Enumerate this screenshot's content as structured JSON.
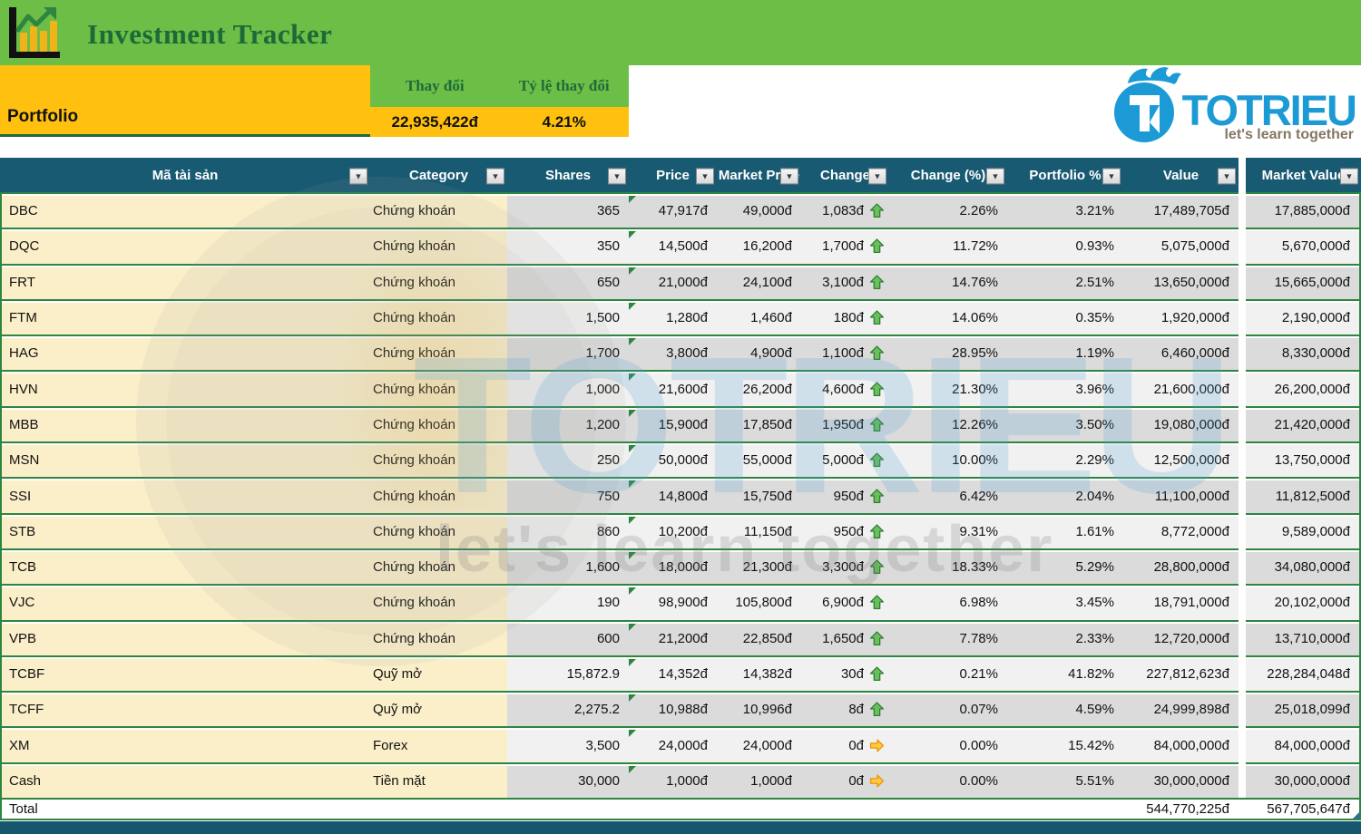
{
  "header": {
    "title": "Investment Tracker"
  },
  "summary": {
    "portfolio_label": "Portfolio",
    "change_label": "Thay đổi",
    "change_pct_label": "Tỷ lệ thay đổi",
    "change_value": "22,935,422đ",
    "change_pct_value": "4.21%"
  },
  "brand": {
    "name": "TOTRIEU",
    "tagline": "let's learn together"
  },
  "colors": {
    "banner_green": "#6CBE46",
    "accent_yellow": "#FFC010",
    "header_teal": "#195A73",
    "border_green": "#2E8540",
    "brand_blue": "#1B9AD6",
    "up_arrow_green": "#69C05B",
    "flat_arrow_orange": "#FFCB3D"
  },
  "table": {
    "columns": [
      "Mã tài sản",
      "Category",
      "Shares",
      "Price",
      "Market Price",
      "Change",
      "Change (%)",
      "Portfolio %",
      "Value",
      "Market Value"
    ],
    "rows": [
      {
        "ticker": "DBC",
        "category": "Chứng khoán",
        "shares": "365",
        "price": "47,917đ",
        "market_price": "49,000đ",
        "change": "1,083đ",
        "direction": "up",
        "change_pct": "2.26%",
        "portfolio_pct": "3.21%",
        "value": "17,489,705đ",
        "market_value": "17,885,000đ"
      },
      {
        "ticker": "DQC",
        "category": "Chứng khoán",
        "shares": "350",
        "price": "14,500đ",
        "market_price": "16,200đ",
        "change": "1,700đ",
        "direction": "up",
        "change_pct": "11.72%",
        "portfolio_pct": "0.93%",
        "value": "5,075,000đ",
        "market_value": "5,670,000đ"
      },
      {
        "ticker": "FRT",
        "category": "Chứng khoán",
        "shares": "650",
        "price": "21,000đ",
        "market_price": "24,100đ",
        "change": "3,100đ",
        "direction": "up",
        "change_pct": "14.76%",
        "portfolio_pct": "2.51%",
        "value": "13,650,000đ",
        "market_value": "15,665,000đ"
      },
      {
        "ticker": "FTM",
        "category": "Chứng khoán",
        "shares": "1,500",
        "price": "1,280đ",
        "market_price": "1,460đ",
        "change": "180đ",
        "direction": "up",
        "change_pct": "14.06%",
        "portfolio_pct": "0.35%",
        "value": "1,920,000đ",
        "market_value": "2,190,000đ"
      },
      {
        "ticker": "HAG",
        "category": "Chứng khoán",
        "shares": "1,700",
        "price": "3,800đ",
        "market_price": "4,900đ",
        "change": "1,100đ",
        "direction": "up",
        "change_pct": "28.95%",
        "portfolio_pct": "1.19%",
        "value": "6,460,000đ",
        "market_value": "8,330,000đ"
      },
      {
        "ticker": "HVN",
        "category": "Chứng khoán",
        "shares": "1,000",
        "price": "21,600đ",
        "market_price": "26,200đ",
        "change": "4,600đ",
        "direction": "up",
        "change_pct": "21.30%",
        "portfolio_pct": "3.96%",
        "value": "21,600,000đ",
        "market_value": "26,200,000đ"
      },
      {
        "ticker": "MBB",
        "category": "Chứng khoán",
        "shares": "1,200",
        "price": "15,900đ",
        "market_price": "17,850đ",
        "change": "1,950đ",
        "direction": "up",
        "change_pct": "12.26%",
        "portfolio_pct": "3.50%",
        "value": "19,080,000đ",
        "market_value": "21,420,000đ"
      },
      {
        "ticker": "MSN",
        "category": "Chứng khoán",
        "shares": "250",
        "price": "50,000đ",
        "market_price": "55,000đ",
        "change": "5,000đ",
        "direction": "up",
        "change_pct": "10.00%",
        "portfolio_pct": "2.29%",
        "value": "12,500,000đ",
        "market_value": "13,750,000đ"
      },
      {
        "ticker": "SSI",
        "category": "Chứng khoán",
        "shares": "750",
        "price": "14,800đ",
        "market_price": "15,750đ",
        "change": "950đ",
        "direction": "up",
        "change_pct": "6.42%",
        "portfolio_pct": "2.04%",
        "value": "11,100,000đ",
        "market_value": "11,812,500đ"
      },
      {
        "ticker": "STB",
        "category": "Chứng khoán",
        "shares": "860",
        "price": "10,200đ",
        "market_price": "11,150đ",
        "change": "950đ",
        "direction": "up",
        "change_pct": "9.31%",
        "portfolio_pct": "1.61%",
        "value": "8,772,000đ",
        "market_value": "9,589,000đ"
      },
      {
        "ticker": "TCB",
        "category": "Chứng khoán",
        "shares": "1,600",
        "price": "18,000đ",
        "market_price": "21,300đ",
        "change": "3,300đ",
        "direction": "up",
        "change_pct": "18.33%",
        "portfolio_pct": "5.29%",
        "value": "28,800,000đ",
        "market_value": "34,080,000đ"
      },
      {
        "ticker": "VJC",
        "category": "Chứng khoán",
        "shares": "190",
        "price": "98,900đ",
        "market_price": "105,800đ",
        "change": "6,900đ",
        "direction": "up",
        "change_pct": "6.98%",
        "portfolio_pct": "3.45%",
        "value": "18,791,000đ",
        "market_value": "20,102,000đ"
      },
      {
        "ticker": "VPB",
        "category": "Chứng khoán",
        "shares": "600",
        "price": "21,200đ",
        "market_price": "22,850đ",
        "change": "1,650đ",
        "direction": "up",
        "change_pct": "7.78%",
        "portfolio_pct": "2.33%",
        "value": "12,720,000đ",
        "market_value": "13,710,000đ"
      },
      {
        "ticker": "TCBF",
        "category": "Quỹ mở",
        "shares": "15,872.9",
        "price": "14,352đ",
        "market_price": "14,382đ",
        "change": "30đ",
        "direction": "up",
        "change_pct": "0.21%",
        "portfolio_pct": "41.82%",
        "value": "227,812,623đ",
        "market_value": "228,284,048đ"
      },
      {
        "ticker": "TCFF",
        "category": "Quỹ mở",
        "shares": "2,275.2",
        "price": "10,988đ",
        "market_price": "10,996đ",
        "change": "8đ",
        "direction": "up",
        "change_pct": "0.07%",
        "portfolio_pct": "4.59%",
        "value": "24,999,898đ",
        "market_value": "25,018,099đ"
      },
      {
        "ticker": "XM",
        "category": "Forex",
        "shares": "3,500",
        "price": "24,000đ",
        "market_price": "24,000đ",
        "change": "0đ",
        "direction": "flat",
        "change_pct": "0.00%",
        "portfolio_pct": "15.42%",
        "value": "84,000,000đ",
        "market_value": "84,000,000đ"
      },
      {
        "ticker": "Cash",
        "category": "Tiền mặt",
        "shares": "30,000",
        "price": "1,000đ",
        "market_price": "1,000đ",
        "change": "0đ",
        "direction": "flat",
        "change_pct": "0.00%",
        "portfolio_pct": "5.51%",
        "value": "30,000,000đ",
        "market_value": "30,000,000đ"
      }
    ],
    "total": {
      "label": "Total",
      "value": "544,770,225đ",
      "market_value": "567,705,647đ"
    }
  }
}
